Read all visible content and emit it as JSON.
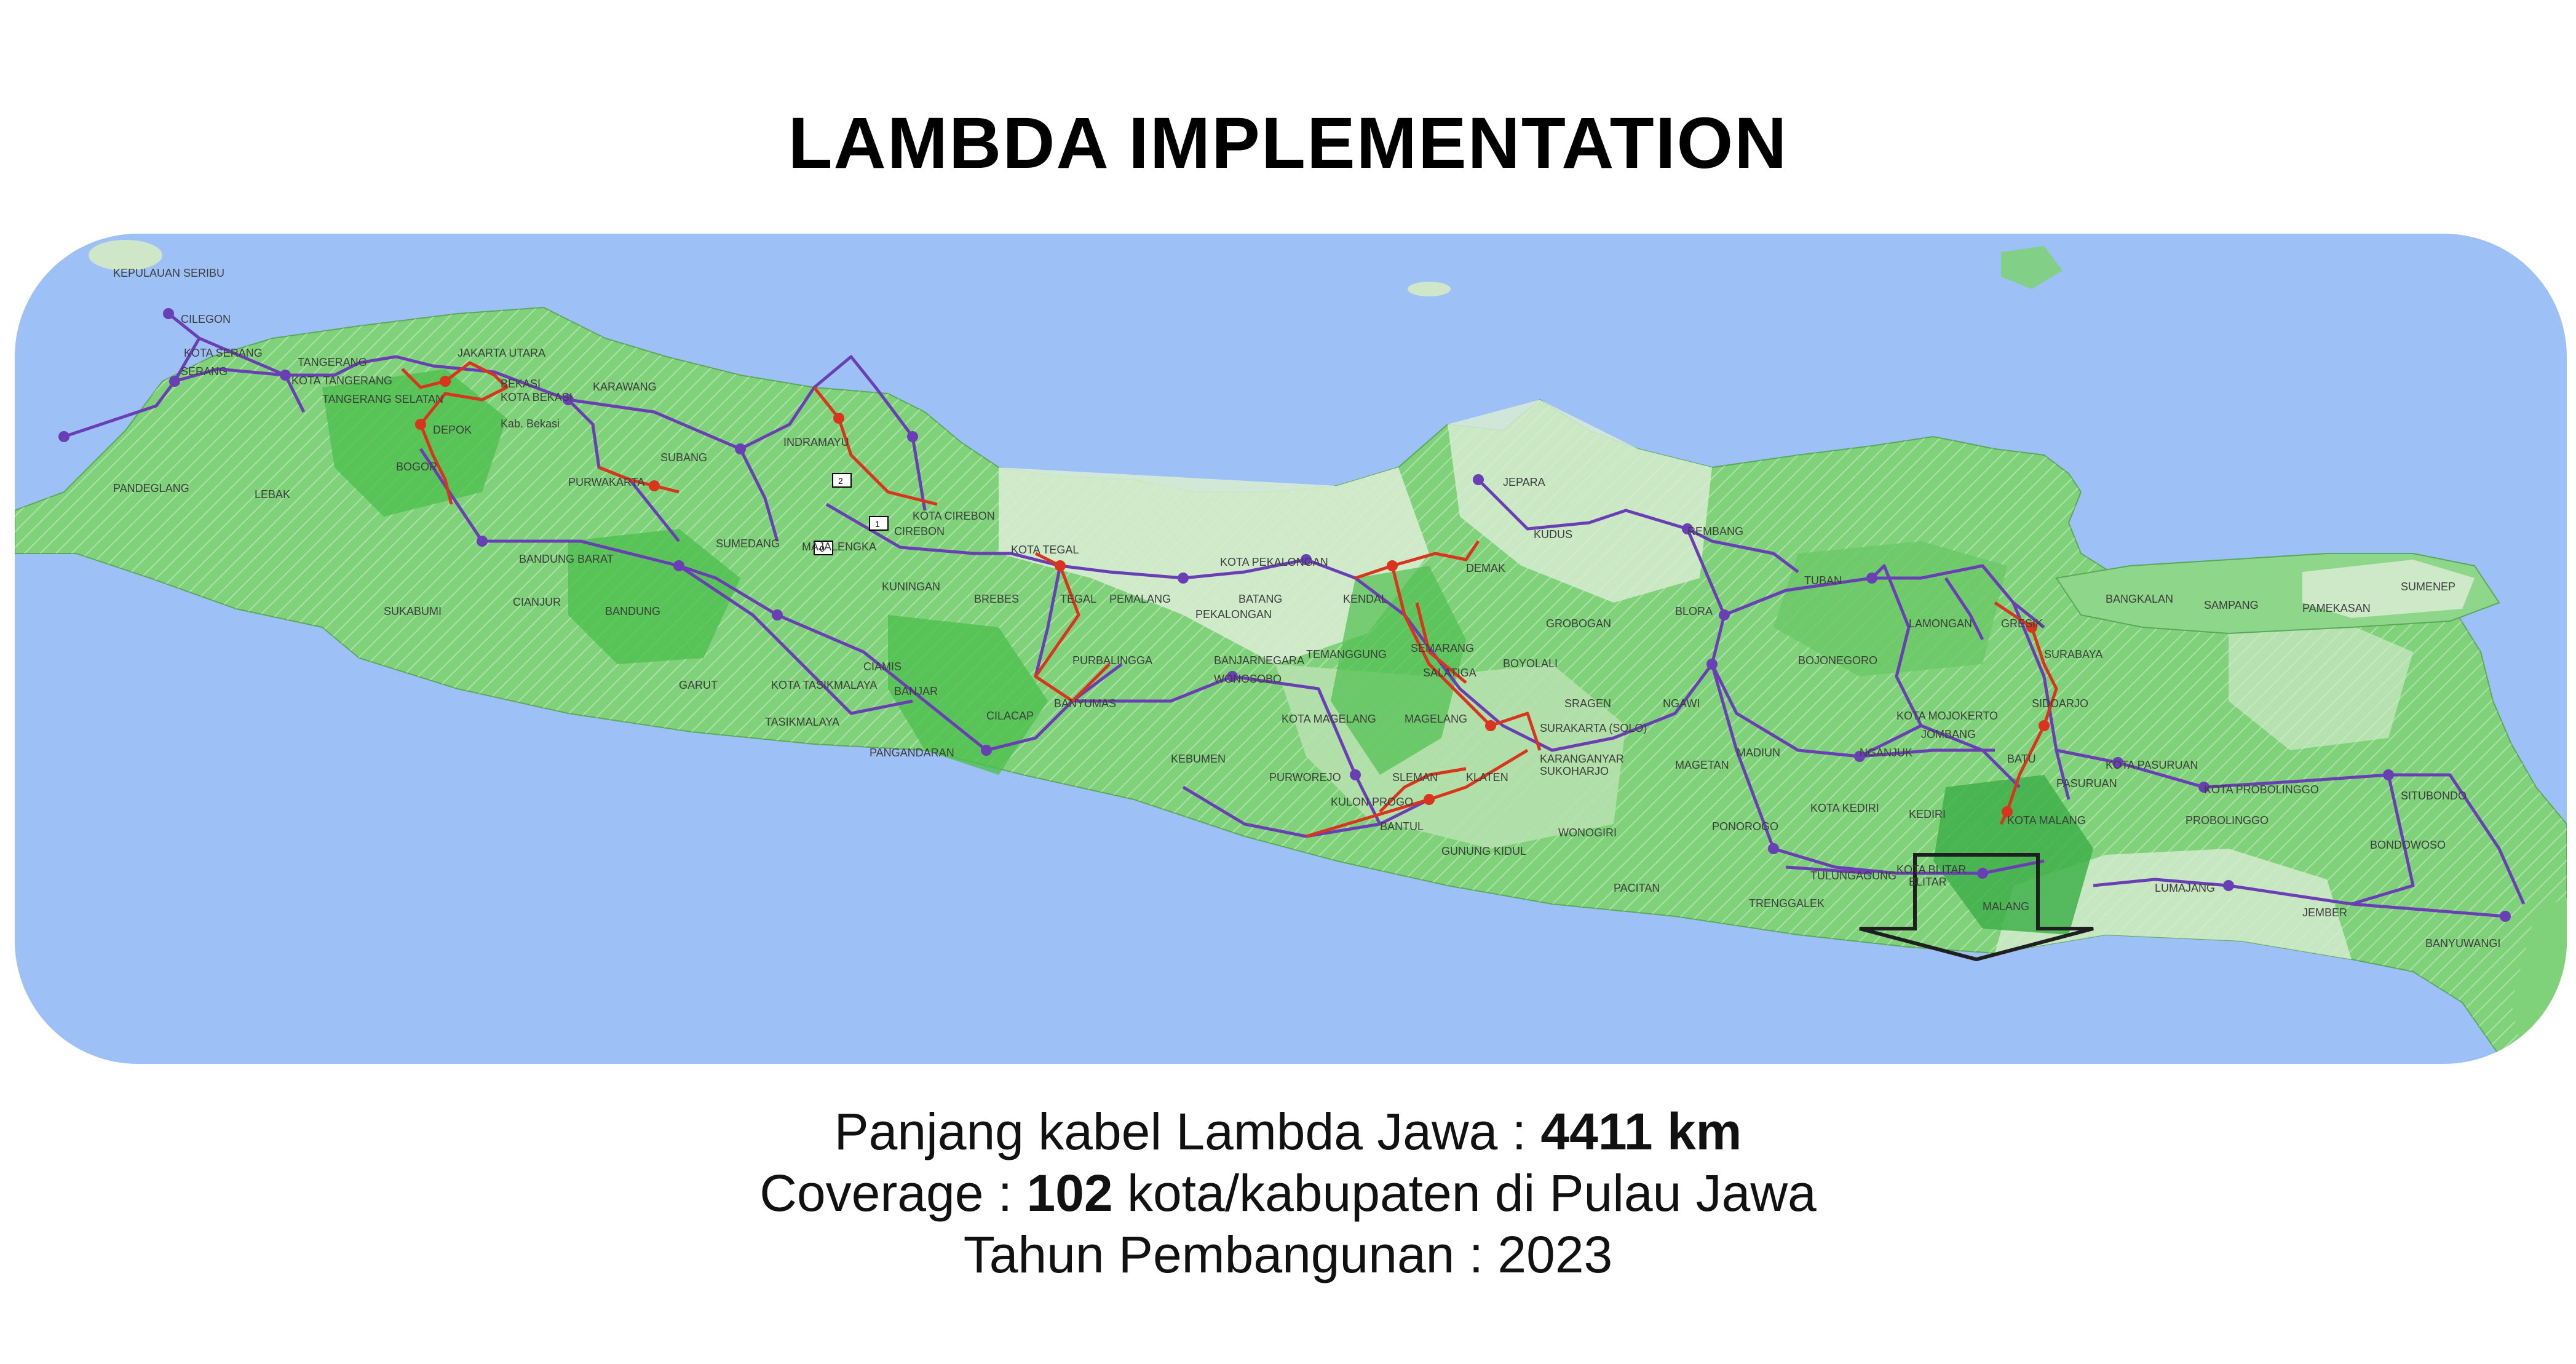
{
  "title": "LAMBDA IMPLEMENTATION",
  "stats": {
    "cable_label": "Panjang kabel Lambda Jawa : ",
    "cable_value": "4411 km",
    "coverage_label": "Coverage : ",
    "coverage_value": "102",
    "coverage_suffix": " kota/kabupaten di Pulau Jawa",
    "year_line": "Tahun Pembangunan : 2023"
  },
  "map": {
    "colors": {
      "sea": "#9dc0f7",
      "land_light": "#d8ecd2",
      "land_mid": "#7fd27a",
      "land_dark": "#4fbf4f",
      "route_purple": "#6a3fb5",
      "route_red": "#d8341e",
      "arrow": "#1f1f1f"
    },
    "region_labels": [
      "KEPULAUAN SERIBU",
      "CILEGON",
      "KOTA SERANG",
      "SERANG",
      "TANGERANG",
      "KOTA TANGERANG",
      "TANGERANG SELATAN",
      "JAKARTA UTARA",
      "BEKASI",
      "KOTA BEKASI",
      "Kab. Bekasi",
      "KARAWANG",
      "DEPOK",
      "BOGOR",
      "PANDEGLANG",
      "LEBAK",
      "SUKABUMI",
      "PURWAKARTA",
      "SUBANG",
      "INDRAMAYU",
      "KOTA CIREBON",
      "CIREBON",
      "KUNINGAN",
      "MAJALENGKA",
      "SUMEDANG",
      "BANDUNG BARAT",
      "BANDUNG",
      "CIANJUR",
      "GARUT",
      "KOTA TASIKMALAYA",
      "TASIKMALAYA",
      "CIAMIS",
      "BANJAR",
      "PANGANDARAN",
      "CILACAP",
      "BREBES",
      "KOTA TEGAL",
      "TEGAL",
      "PEMALANG",
      "KOTA PEKALONGAN",
      "BATANG",
      "PEKALONGAN",
      "PURBALINGGA",
      "BANYUMAS",
      "BANJARNEGARA",
      "WONOSOBO",
      "KENDAL",
      "TEMANGGUNG",
      "KOTA MAGELANG",
      "MAGELANG",
      "KEBUMEN",
      "PURWOREJO",
      "KULON PROGO",
      "SLEMAN",
      "BANTUL",
      "GUNUNG KIDUL",
      "KLATEN",
      "SEMARANG",
      "SALATIGA",
      "DEMAK",
      "JEPARA",
      "KUDUS",
      "REMBANG",
      "GROBOGAN",
      "BOYOLALI",
      "SURAKARTA (SOLO)",
      "KARANGANYAR",
      "SUKOHARJO",
      "SRAGEN",
      "WONOGIRI",
      "BLORA",
      "NGAWI",
      "MAGETAN",
      "MADIUN",
      "PONOROGO",
      "PACITAN",
      "TRENGGALEK",
      "TULUNGAGUNG",
      "KOTA BLITAR",
      "BLITAR",
      "KEDIRI",
      "KOTA KEDIRI",
      "NGANJUK",
      "BOJONEGORO",
      "TUBAN",
      "LAMONGAN",
      "GRESIK",
      "SURABAYA",
      "SIDOARJO",
      "KOTA MOJOKERTO",
      "JOMBANG",
      "BATU",
      "MALANG",
      "KOTA MALANG",
      "PASURUAN",
      "KOTA PASURUAN",
      "PROBOLINGGO",
      "KOTA PROBOLINGGO",
      "LUMAJANG",
      "JEMBER",
      "BONDOWOSO",
      "SITUBONDO",
      "BANYUWANGI",
      "BANGKALAN",
      "SAMPANG",
      "PAMEKASAN",
      "SUMENEP"
    ],
    "node_tags": [
      "0",
      "1",
      "2"
    ]
  }
}
